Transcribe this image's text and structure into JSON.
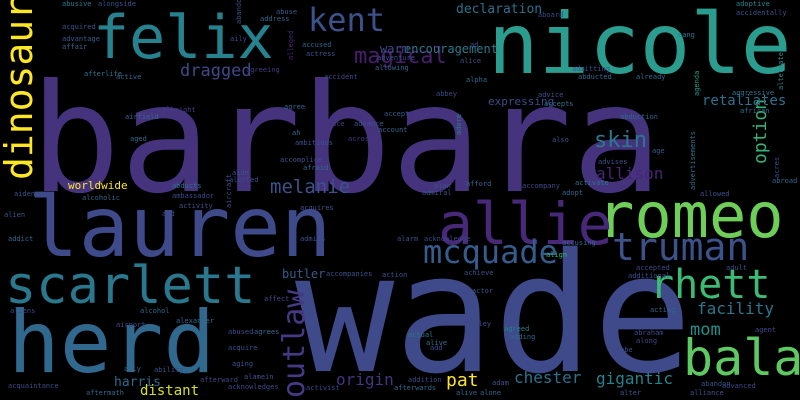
{
  "background": "#000000",
  "palette": {
    "indigo": "#46337e",
    "indigo_light": "#3e4a89",
    "teal": "#26828e",
    "teal_dark": "#2a788e",
    "blue": "#365c8d",
    "green": "#35b779",
    "green_light": "#6ece58",
    "lime": "#b5de2b",
    "yellow": "#fde725",
    "purple": "#482878",
    "purple_dark": "#440154"
  },
  "words": [
    {
      "text": "barbara",
      "color": "#46337e"
    },
    {
      "text": "wade",
      "color": "#3e4a89"
    },
    {
      "text": "nicole",
      "color": "#2a9d8f"
    },
    {
      "text": "lauren",
      "color": "#3e4a89"
    },
    {
      "text": "herd",
      "color": "#31688e"
    },
    {
      "text": "felix",
      "color": "#26828e"
    },
    {
      "text": "romeo",
      "color": "#6ece58"
    },
    {
      "text": "scarlett",
      "color": "#2a788e"
    },
    {
      "text": "allie",
      "color": "#482878"
    },
    {
      "text": "truman",
      "color": "#3b528b"
    },
    {
      "text": "mcquade",
      "color": "#365c8d"
    },
    {
      "text": "rhett",
      "color": "#3cbb75"
    },
    {
      "text": "bala",
      "color": "#5ec962"
    },
    {
      "text": "kent",
      "color": "#3b528b"
    },
    {
      "text": "dinosaur",
      "color": "#fde725"
    },
    {
      "text": "outlaw",
      "color": "#443983"
    },
    {
      "text": "magical",
      "color": "#481f70"
    },
    {
      "text": "dragged",
      "color": "#3e4a89"
    },
    {
      "text": "skin",
      "color": "#2a788e"
    },
    {
      "text": "melanie",
      "color": "#3b528b"
    },
    {
      "text": "allison",
      "color": "#482475"
    },
    {
      "text": "retaliates",
      "color": "#2c728e"
    },
    {
      "text": "facility",
      "color": "#2a788e"
    },
    {
      "text": "mom",
      "color": "#21918c"
    },
    {
      "text": "option",
      "color": "#31b57b"
    },
    {
      "text": "declaration",
      "color": "#2d708e"
    },
    {
      "text": "encouragement",
      "color": "#2a788e"
    },
    {
      "text": "warm",
      "color": "#3e4a89"
    },
    {
      "text": "pat",
      "color": "#fde725"
    },
    {
      "text": "origin",
      "color": "#46337e"
    },
    {
      "text": "chester",
      "color": "#2c728e"
    },
    {
      "text": "gigantic",
      "color": "#26828e"
    },
    {
      "text": "harris",
      "color": "#31688e"
    },
    {
      "text": "distant",
      "color": "#d8e219"
    },
    {
      "text": "worldwide",
      "color": "#fde725"
    },
    {
      "text": "expressing",
      "color": "#3e4a89"
    },
    {
      "text": "butler",
      "color": "#365c8d"
    },
    {
      "text": "alice",
      "color": "#3b528b"
    },
    {
      "text": "alpha",
      "color": "#31688e"
    },
    {
      "text": "adore",
      "color": "#26828e"
    },
    {
      "text": "achieve",
      "color": "#3b528b"
    },
    {
      "text": "actual",
      "color": "#2a788e"
    },
    {
      "text": "alive",
      "color": "#2c728e"
    },
    {
      "text": "alley",
      "color": "#3e4a89"
    },
    {
      "text": "agreed",
      "color": "#26828e"
    },
    {
      "text": "align",
      "color": "#35b779"
    },
    {
      "text": "advice",
      "color": "#3b528b"
    },
    {
      "text": "accepts",
      "color": "#2c728e"
    },
    {
      "text": "accept",
      "color": "#365c8d"
    },
    {
      "text": "account",
      "color": "#31688e"
    },
    {
      "text": "abbey",
      "color": "#3e4a89"
    },
    {
      "text": "agree",
      "color": "#31688e"
    },
    {
      "text": "ad",
      "color": "#3e4a89"
    },
    {
      "text": "agenda",
      "color": "#1f9e89"
    },
    {
      "text": "abusive",
      "color": "#2a788e"
    },
    {
      "text": "alongside",
      "color": "#3b528b"
    },
    {
      "text": "abuse",
      "color": "#365c8d"
    },
    {
      "text": "address",
      "color": "#31688e"
    },
    {
      "text": "aboard",
      "color": "#3e4a89"
    },
    {
      "text": "adoptive",
      "color": "#26828e"
    },
    {
      "text": "advertisements",
      "color": "#2c728e"
    },
    {
      "text": "accidentally",
      "color": "#3b528b"
    },
    {
      "text": "aang",
      "color": "#2a788e"
    },
    {
      "text": "alternate",
      "color": "#26828e"
    },
    {
      "text": "acquired",
      "color": "#3b528b"
    },
    {
      "text": "advantage",
      "color": "#365c8d"
    },
    {
      "text": "affair",
      "color": "#31688e"
    },
    {
      "text": "afterlife",
      "color": "#2a788e"
    },
    {
      "text": "active",
      "color": "#31688e"
    },
    {
      "text": "aily",
      "color": "#3e4a89"
    },
    {
      "text": "actress",
      "color": "#3b528b"
    },
    {
      "text": "accused",
      "color": "#31688e"
    },
    {
      "text": "accident",
      "color": "#3e4a89"
    },
    {
      "text": "adventure",
      "color": "#3b528b"
    },
    {
      "text": "allowing",
      "color": "#31688e"
    },
    {
      "text": "admitting",
      "color": "#3b528b"
    },
    {
      "text": "abducted",
      "color": "#31688e"
    },
    {
      "text": "already",
      "color": "#31688e"
    },
    {
      "text": "agreeing",
      "color": "#443983"
    },
    {
      "text": "airfield",
      "color": "#31688e"
    },
    {
      "text": "albright",
      "color": "#443983"
    },
    {
      "text": "aggressive",
      "color": "#2c728e"
    },
    {
      "text": "african",
      "color": "#2c728e"
    },
    {
      "text": "abduction",
      "color": "#31688e"
    },
    {
      "text": "acres",
      "color": "#3e4a89"
    },
    {
      "text": "ah",
      "color": "#31688e"
    },
    {
      "text": "ambitious",
      "color": "#3b528b"
    },
    {
      "text": "across",
      "color": "#443983"
    },
    {
      "text": "advance",
      "color": "#3b528b"
    },
    {
      "text": "ace",
      "color": "#443983"
    },
    {
      "text": "also",
      "color": "#3b528b"
    },
    {
      "text": "age",
      "color": "#365c8d"
    },
    {
      "text": "aged",
      "color": "#31688e"
    },
    {
      "text": "accomplice",
      "color": "#3b528b"
    },
    {
      "text": "afraid",
      "color": "#31688e"
    },
    {
      "text": "advises",
      "color": "#3b528b"
    },
    {
      "text": "activate",
      "color": "#2c728e"
    },
    {
      "text": "aide",
      "color": "#3b528b"
    },
    {
      "text": "alerted",
      "color": "#3e4a89"
    },
    {
      "text": "abducts",
      "color": "#2c728e"
    },
    {
      "text": "ambassador",
      "color": "#3e4a89"
    },
    {
      "text": "acquires",
      "color": "#3b528b"
    },
    {
      "text": "alan",
      "color": "#3b528b"
    },
    {
      "text": "admiral",
      "color": "#3b528b"
    },
    {
      "text": "afford",
      "color": "#31688e"
    },
    {
      "text": "accompany",
      "color": "#3e4a89"
    },
    {
      "text": "adopt",
      "color": "#31688e"
    },
    {
      "text": "abroad",
      "color": "#31688e"
    },
    {
      "text": "alcoholic",
      "color": "#31688e"
    },
    {
      "text": "activity",
      "color": "#3b528b"
    },
    {
      "text": "aiden",
      "color": "#3b528b"
    },
    {
      "text": "alien",
      "color": "#3b528b"
    },
    {
      "text": "addict",
      "color": "#31688e"
    },
    {
      "text": "aid",
      "color": "#3e4a89"
    },
    {
      "text": "admits",
      "color": "#3b528b"
    },
    {
      "text": "alarm",
      "color": "#3b528b"
    },
    {
      "text": "acknowledge",
      "color": "#3e4a89"
    },
    {
      "text": "accusing",
      "color": "#31688e"
    },
    {
      "text": "accepted",
      "color": "#3e4a89"
    },
    {
      "text": "additional",
      "color": "#3b528b"
    },
    {
      "text": "adult",
      "color": "#3e4a89"
    },
    {
      "text": "accompanies",
      "color": "#3b528b"
    },
    {
      "text": "action",
      "color": "#3b528b"
    },
    {
      "text": "affect",
      "color": "#3e4a89"
    },
    {
      "text": "alcohol",
      "color": "#31688e"
    },
    {
      "text": "alexander",
      "color": "#31688e"
    },
    {
      "text": "airport",
      "color": "#3e4a89"
    },
    {
      "text": "abused",
      "color": "#3e4a89"
    },
    {
      "text": "agrees",
      "color": "#31688e"
    },
    {
      "text": "acquire",
      "color": "#3b528b"
    },
    {
      "text": "aging",
      "color": "#3b528b"
    },
    {
      "text": "ability",
      "color": "#3b528b"
    },
    {
      "text": "afterward",
      "color": "#3e4a89"
    },
    {
      "text": "alamein",
      "color": "#3b528b"
    },
    {
      "text": "acknowledges",
      "color": "#3e4a89"
    },
    {
      "text": "activist",
      "color": "#3e4a89"
    },
    {
      "text": "addition",
      "color": "#3e4a89"
    },
    {
      "text": "afterwards",
      "color": "#31688e"
    },
    {
      "text": "adam",
      "color": "#3b528b"
    },
    {
      "text": "alive",
      "color": "#31688e"
    },
    {
      "text": "alone",
      "color": "#31688e"
    },
    {
      "text": "adding",
      "color": "#31688e"
    },
    {
      "text": "acting",
      "color": "#31688e"
    },
    {
      "text": "agent",
      "color": "#3e4a89"
    },
    {
      "text": "abraham",
      "color": "#3e4a89"
    },
    {
      "text": "along",
      "color": "#3e4a89"
    },
    {
      "text": "abandon",
      "color": "#3b528b"
    },
    {
      "text": "advanced",
      "color": "#3e4a89"
    },
    {
      "text": "alter",
      "color": "#3b528b"
    },
    {
      "text": "alliance",
      "color": "#3b528b"
    },
    {
      "text": "acquaintance",
      "color": "#3e4a89"
    },
    {
      "text": "aftermath",
      "color": "#31688e"
    },
    {
      "text": "ally",
      "color": "#31688e"
    },
    {
      "text": "abe",
      "color": "#3e4a89"
    },
    {
      "text": "aliens",
      "color": "#3e4a89"
    },
    {
      "text": "actor",
      "color": "#3b528b"
    },
    {
      "text": "add",
      "color": "#3e4a89"
    },
    {
      "text": "aircraft",
      "color": "#3e4a89"
    },
    {
      "text": "alleged",
      "color": "#482475"
    },
    {
      "text": "abandoning",
      "color": "#3b528b"
    },
    {
      "text": "allowed",
      "color": "#3b528b"
    },
    {
      "text": "abroad",
      "color": "#3e4a89"
    },
    {
      "text": "ahead",
      "color": "#3e4a89"
    }
  ]
}
